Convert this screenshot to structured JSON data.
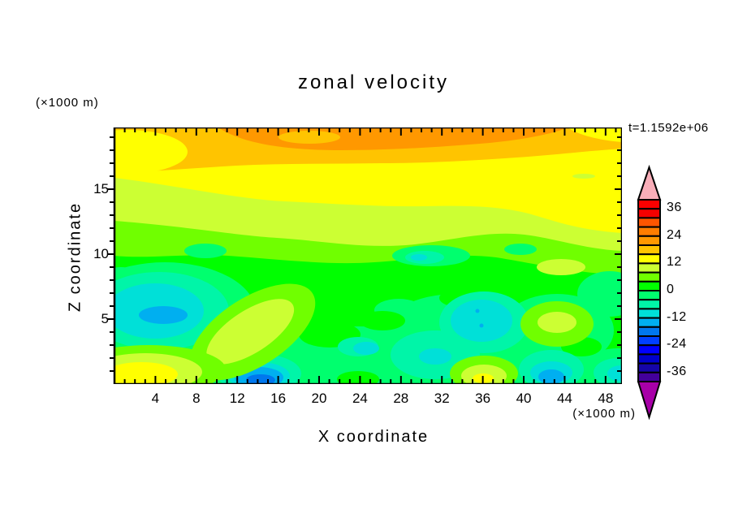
{
  "title": "zonal velocity",
  "time_label": "t=1.1592e+06",
  "x_axis": {
    "label": "X coordinate",
    "unit_label": "(×1000 m)",
    "major_ticks": [
      4,
      8,
      12,
      16,
      20,
      24,
      28,
      32,
      36,
      40,
      44,
      48
    ],
    "minor_step": 1,
    "min": 0,
    "max": 49.6
  },
  "y_axis": {
    "label": "Z coordinate",
    "unit_label": "(×1000 m)",
    "major_ticks": [
      5,
      10,
      15
    ],
    "minor_step": 1,
    "min": 0,
    "max": 19.75
  },
  "colorbar": {
    "tick_labels": [
      "36",
      "24",
      "12",
      "0",
      "-12",
      "-24",
      "-36"
    ],
    "box_colors_top_to_bottom": [
      "#FA0000",
      "#F40000",
      "#FF5500",
      "#FF7D00",
      "#FF9800",
      "#FFC400",
      "#FFFF00",
      "#CCFF33",
      "#70FF00",
      "#00FF00",
      "#00FF6E",
      "#00F5A8",
      "#00E0D8",
      "#00AFF0",
      "#0077EE",
      "#0040FF",
      "#0000FF",
      "#0000CC",
      "#1505A8",
      "#43009B"
    ],
    "over_arrow_color": "#F9AEB9",
    "under_arrow_color": "#A800A8",
    "level_min": -40,
    "level_max": 40,
    "level_step": 4
  },
  "chart_data": {
    "type": "heatmap",
    "title": "zonal velocity",
    "xlabel": "X coordinate (×1000 m)",
    "ylabel": "Z coordinate (×1000 m)",
    "x_range": [
      0,
      50
    ],
    "z_range": [
      0,
      20
    ],
    "contour_levels_min": -40,
    "contour_levels_max": 40,
    "contour_interval": 4,
    "time": "t=1.1592e+06",
    "x": [
      2,
      6,
      10,
      14,
      18,
      22,
      26,
      30,
      34,
      38,
      42,
      46,
      49
    ],
    "z": [
      19,
      17,
      15,
      13,
      11,
      9,
      7,
      5,
      3,
      1
    ],
    "values_approx": [
      [
        18,
        19,
        21,
        23,
        25,
        25,
        25,
        23,
        22,
        19,
        18,
        17,
        17
      ],
      [
        17,
        18,
        18,
        17,
        16,
        15,
        15,
        15,
        16,
        17,
        15,
        14,
        14
      ],
      [
        12,
        11,
        10,
        10,
        11,
        12,
        12,
        11,
        10,
        12,
        13,
        13,
        12
      ],
      [
        7,
        8,
        9,
        10,
        9,
        8,
        7,
        7,
        8,
        9,
        10,
        9,
        8
      ],
      [
        4,
        5,
        6,
        5,
        4,
        3,
        3,
        4,
        4,
        5,
        6,
        5,
        4
      ],
      [
        2,
        1,
        2,
        3,
        1,
        0,
        -1,
        0,
        1,
        2,
        1,
        2,
        3
      ],
      [
        -4,
        -7,
        -2,
        1,
        3,
        -1,
        -3,
        -2,
        -4,
        -9,
        -3,
        1,
        -2
      ],
      [
        -8,
        -14,
        -4,
        5,
        2,
        -5,
        -6,
        -3,
        -7,
        -11,
        -4,
        4,
        -6
      ],
      [
        -5,
        -7,
        -3,
        0,
        -4,
        -6,
        -8,
        -5,
        -6,
        -7,
        -3,
        -2,
        -8
      ],
      [
        6,
        3,
        -3,
        -15,
        -5,
        -7,
        -9,
        -6,
        -4,
        5,
        -2,
        -13,
        -9
      ]
    ],
    "palette_top_to_bottom": [
      "#FA0000",
      "#F40000",
      "#FF5500",
      "#FF7D00",
      "#FF9800",
      "#FFC400",
      "#FFFF00",
      "#CCFF33",
      "#70FF00",
      "#00FF00",
      "#00FF6E",
      "#00F5A8",
      "#00E0D8",
      "#00AFF0",
      "#0077EE",
      "#0040FF",
      "#0000FF",
      "#0000CC",
      "#1505A8",
      "#43009B"
    ],
    "legend_position": "right"
  }
}
